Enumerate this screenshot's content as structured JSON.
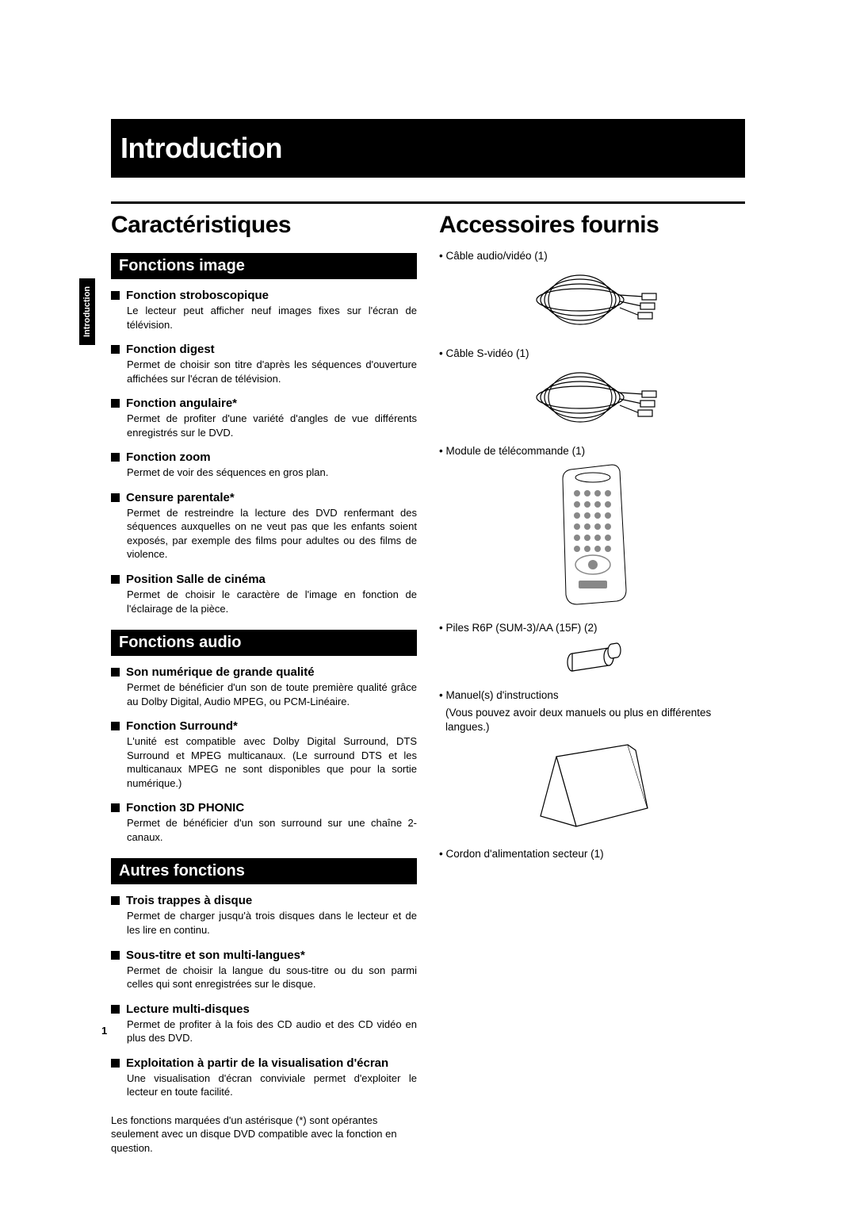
{
  "page_number": "1",
  "side_tab": "Introduction",
  "main_title": "Introduction",
  "left": {
    "section_title": "Caractéristiques",
    "sub1": {
      "title": "Fonctions image",
      "features": [
        {
          "h": "Fonction stroboscopique",
          "d": "Le lecteur peut afficher neuf images fixes sur l'écran de télévision."
        },
        {
          "h": "Fonction digest",
          "d": "Permet de choisir son titre d'après les séquences d'ouverture affichées sur l'écran de télévision."
        },
        {
          "h": "Fonction angulaire*",
          "d": "Permet de profiter d'une variété d'angles de vue différents enregistrés sur le DVD."
        },
        {
          "h": "Fonction zoom",
          "d": "Permet de voir des séquences en gros plan."
        },
        {
          "h": "Censure parentale*",
          "d": "Permet de restreindre la lecture des DVD renfermant des séquences auxquelles on ne veut pas que les enfants soient exposés, par exemple des films pour adultes ou des films de violence."
        },
        {
          "h": "Position Salle de cinéma",
          "d": "Permet de choisir le caractère de l'image en fonction de l'éclairage de la pièce."
        }
      ]
    },
    "sub2": {
      "title": "Fonctions audio",
      "features": [
        {
          "h": "Son numérique de grande qualité",
          "d": "Permet de bénéficier d'un son de toute première qualité grâce au Dolby Digital, Audio MPEG, ou PCM-Linéaire."
        },
        {
          "h": "Fonction Surround*",
          "d": "L'unité est compatible avec Dolby Digital Surround, DTS Surround et MPEG multicanaux.\n(Le surround DTS et les multicanaux MPEG ne sont disponibles que pour la sortie numérique.)"
        },
        {
          "h": "Fonction 3D PHONIC",
          "d": "Permet de bénéficier d'un son surround sur une chaîne 2-canaux."
        }
      ]
    },
    "sub3": {
      "title": "Autres fonctions",
      "features": [
        {
          "h": "Trois trappes à disque",
          "d": "Permet de charger jusqu'à trois disques dans le lecteur et de les lire en continu."
        },
        {
          "h": "Sous-titre et son multi-langues*",
          "d": "Permet de choisir la langue du sous-titre ou du son parmi celles qui sont enregistrées sur le disque."
        },
        {
          "h": "Lecture multi-disques",
          "d": "Permet de profiter à la fois des CD audio et des CD vidéo en plus des DVD."
        },
        {
          "h": "Exploitation à partir de la visualisation d'écran",
          "d": "Une visualisation d'écran conviviale permet d'exploiter le lecteur en toute facilité."
        }
      ]
    },
    "footnote": "Les fonctions marquées d'un astérisque (*) sont opérantes seulement avec un disque DVD compatible avec la fonction en question."
  },
  "right": {
    "section_title": "Accessoires fournis",
    "items": [
      {
        "label": "• Câble audio/vidéo (1)",
        "image": "cable"
      },
      {
        "label": "• Câble S-vidéo (1)",
        "image": "cable"
      },
      {
        "label": "• Module de télécommande (1)",
        "image": "remote"
      },
      {
        "label": "• Piles R6P (SUM-3)/AA (15F) (2)",
        "image": "battery"
      },
      {
        "label": "• Manuel(s) d'instructions",
        "note": "(Vous pouvez avoir deux manuels ou plus en différentes langues.)",
        "image": "manual"
      },
      {
        "label": "• Cordon d'alimentation secteur (1)",
        "image": null
      }
    ]
  },
  "colors": {
    "text": "#000000",
    "bg": "#ffffff",
    "bar_bg": "#000000",
    "bar_text": "#ffffff"
  }
}
